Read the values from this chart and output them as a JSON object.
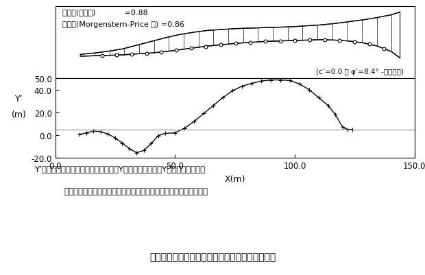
{
  "annotation1": "安全率(簡便法)            =0.88",
  "annotation2": "安全率(Morgenstern-Price 法) =0.86",
  "annotation3": "(c’=0.0 ， φ’=8.4° -残留強度)",
  "caption1": "Y’；スライス間力（合力）の作用するY座標とすべり面のY座標の差であり、",
  "caption2": "スライス間力の合力がすべり面の下側に作用する場合を負値とする",
  "fig_title": "围４　従来法による非合理的な解（極限平衡法）",
  "xlabel": "X(m)",
  "ylabel1": "Y’",
  "ylabel2": "(m)",
  "xlim": [
    0.0,
    150.0
  ],
  "ylim": [
    -20.0,
    50.0
  ],
  "xticks": [
    0.0,
    50.0,
    100.0,
    150.0
  ],
  "yticks": [
    -20.0,
    0.0,
    20.0,
    40.0,
    50.0
  ],
  "hline_y": 5.0,
  "upper_surface_x": [
    10,
    15,
    20,
    25,
    30,
    35,
    40,
    45,
    50,
    55,
    60,
    65,
    70,
    75,
    80,
    85,
    90,
    95,
    100,
    105,
    110,
    115,
    120,
    123
  ],
  "upper_surface_y": [
    0.08,
    0.11,
    0.15,
    0.2,
    0.28,
    0.36,
    0.44,
    0.51,
    0.56,
    0.6,
    0.62,
    0.64,
    0.65,
    0.66,
    0.67,
    0.68,
    0.7,
    0.72,
    0.75,
    0.79,
    0.83,
    0.88,
    0.94,
    1.0
  ],
  "lower_surface_x": [
    10,
    15,
    20,
    25,
    30,
    35,
    40,
    45,
    50,
    55,
    60,
    65,
    70,
    75,
    80,
    85,
    90,
    95,
    100,
    105,
    110,
    115,
    120,
    123
  ],
  "lower_surface_y": [
    0.04,
    0.05,
    0.06,
    0.07,
    0.09,
    0.11,
    0.14,
    0.18,
    0.22,
    0.26,
    0.29,
    0.32,
    0.34,
    0.36,
    0.37,
    0.38,
    0.39,
    0.4,
    0.39,
    0.37,
    0.33,
    0.26,
    0.14,
    0.0
  ],
  "xdata": [
    10,
    13,
    16,
    19,
    22,
    25,
    28,
    31,
    34,
    37,
    40,
    43,
    46,
    50,
    54,
    58,
    62,
    66,
    70,
    74,
    78,
    82,
    86,
    90,
    94,
    98,
    102,
    106,
    110,
    114,
    117,
    120,
    122,
    124
  ],
  "ydata": [
    0.5,
    2.0,
    3.5,
    3.0,
    1.0,
    -2.5,
    -7.0,
    -12.0,
    -15.5,
    -13.5,
    -7.5,
    -0.5,
    1.5,
    2.0,
    6.0,
    12.0,
    19.0,
    26.0,
    33.0,
    39.0,
    43.0,
    45.5,
    47.5,
    48.5,
    48.5,
    48.0,
    45.0,
    40.0,
    33.0,
    26.0,
    18.0,
    7.0,
    5.0,
    5.0
  ]
}
